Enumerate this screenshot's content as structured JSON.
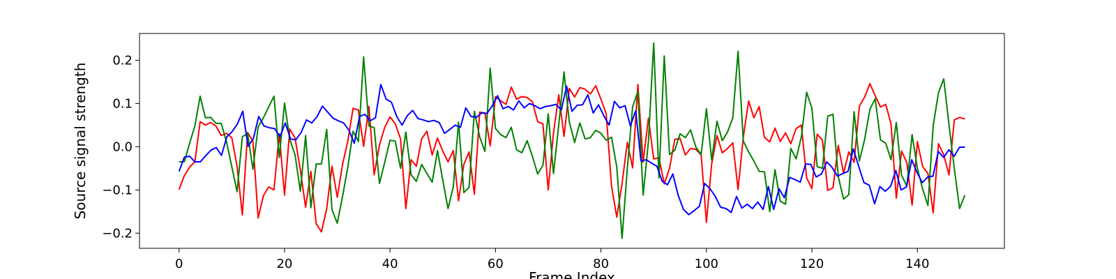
{
  "chart_data": {
    "type": "line",
    "xlabel": "Frame Index",
    "ylabel": "Source signal strength",
    "xlim": [
      -7.5,
      156.5
    ],
    "ylim": [
      -0.235,
      0.262
    ],
    "xticks": [
      0,
      20,
      40,
      60,
      80,
      100,
      120,
      140
    ],
    "yticks": [
      -0.2,
      -0.1,
      0.0,
      0.1,
      0.2
    ],
    "xtick_labels": [
      "0",
      "20",
      "40",
      "60",
      "80",
      "100",
      "120",
      "140"
    ],
    "ytick_labels": [
      "−0.2",
      "−0.1",
      "0.0",
      "0.1",
      "0.2"
    ],
    "grid": false,
    "legend": false,
    "x_start": 0,
    "x_end": 149,
    "series": [
      {
        "color": "#ff0000",
        "values": [
          -0.099,
          -0.067,
          -0.047,
          -0.035,
          0.058,
          0.05,
          0.056,
          0.048,
          0.026,
          0.031,
          0.021,
          -0.045,
          -0.158,
          0.033,
          0.013,
          -0.165,
          -0.113,
          -0.093,
          -0.1,
          0.03,
          -0.112,
          0.041,
          0.02,
          -0.054,
          -0.14,
          -0.057,
          -0.178,
          -0.197,
          -0.143,
          -0.045,
          -0.117,
          -0.041,
          0.013,
          0.089,
          0.085,
          0.001,
          0.093,
          -0.065,
          0.004,
          0.045,
          0.069,
          0.053,
          0.018,
          -0.143,
          -0.03,
          -0.045,
          0.018,
          0.036,
          -0.019,
          0.02,
          -0.01,
          -0.035,
          -0.009,
          -0.125,
          -0.041,
          -0.012,
          -0.11,
          0.08,
          0.078,
          0.002,
          0.116,
          0.106,
          0.098,
          0.138,
          0.11,
          0.116,
          0.114,
          0.104,
          0.058,
          0.053,
          -0.1,
          0.032,
          0.12,
          0.024,
          0.135,
          0.115,
          0.137,
          0.133,
          0.122,
          0.141,
          0.11,
          0.076,
          -0.091,
          -0.163,
          -0.085,
          0.01,
          -0.049,
          0.144,
          -0.036,
          0.066,
          -0.028,
          -0.026,
          -0.086,
          -0.05,
          0.017,
          0.019,
          -0.019,
          -0.004,
          -0.006,
          -0.019,
          -0.175,
          -0.039,
          0.026,
          -0.014,
          -0.004,
          0.009,
          -0.099,
          0.023,
          0.106,
          0.067,
          0.093,
          0.022,
          0.011,
          0.043,
          0.012,
          0.032,
          0.007,
          0.042,
          0.05,
          -0.072,
          -0.097,
          0.029,
          0.015,
          -0.101,
          -0.095,
          0.003,
          -0.061,
          -0.012,
          -0.036,
          0.094,
          0.115,
          0.146,
          0.118,
          0.092,
          0.098,
          0.053,
          -0.119,
          -0.01,
          -0.037,
          -0.135,
          0.012,
          -0.046,
          -0.062,
          -0.153,
          0.007,
          -0.019,
          -0.065,
          0.062,
          0.068,
          0.064
        ]
      },
      {
        "color": "#008000",
        "values": [
          -0.035,
          -0.035,
          0.008,
          0.048,
          0.117,
          0.067,
          0.068,
          0.054,
          0.054,
          0.011,
          -0.046,
          -0.104,
          0.023,
          0.031,
          -0.052,
          0.046,
          0.067,
          0.092,
          0.117,
          -0.025,
          0.101,
          0.017,
          -0.019,
          -0.103,
          0.026,
          -0.141,
          -0.04,
          -0.04,
          0.04,
          -0.146,
          -0.177,
          -0.115,
          -0.047,
          0.036,
          0.012,
          0.208,
          0.048,
          0.044,
          -0.085,
          -0.036,
          0.015,
          0.013,
          -0.05,
          0.034,
          -0.065,
          -0.08,
          -0.041,
          -0.062,
          -0.082,
          -0.009,
          -0.077,
          -0.143,
          -0.093,
          0.057,
          -0.106,
          -0.094,
          0.082,
          0.023,
          -0.011,
          0.182,
          0.042,
          0.028,
          0.021,
          0.045,
          -0.007,
          -0.014,
          0.014,
          -0.022,
          -0.063,
          -0.043,
          0.076,
          -0.062,
          0.051,
          0.173,
          0.057,
          0.01,
          0.055,
          0.018,
          0.021,
          0.038,
          0.031,
          0.015,
          0.022,
          -0.047,
          -0.212,
          -0.05,
          0.092,
          0.128,
          -0.112,
          0.012,
          0.24,
          -0.072,
          0.21,
          -0.018,
          -0.008,
          0.03,
          0.021,
          0.039,
          -0.001,
          -0.018,
          0.088,
          -0.031,
          0.059,
          0.014,
          0.034,
          0.067,
          0.221,
          0.013,
          -0.012,
          -0.033,
          -0.057,
          -0.058,
          -0.15,
          -0.053,
          -0.126,
          -0.133,
          -0.004,
          -0.028,
          0.023,
          0.126,
          0.089,
          -0.046,
          -0.05,
          0.071,
          0.075,
          -0.069,
          -0.121,
          -0.111,
          0.081,
          -0.033,
          0.017,
          0.087,
          0.111,
          0.016,
          0.008,
          -0.03,
          0.056,
          -0.066,
          -0.091,
          0.028,
          -0.05,
          -0.098,
          -0.136,
          0.049,
          0.125,
          0.157,
          0.05,
          -0.05,
          -0.143,
          -0.112
        ]
      },
      {
        "color": "#0000ff",
        "values": [
          -0.057,
          -0.024,
          -0.022,
          -0.035,
          -0.035,
          -0.021,
          -0.008,
          -0.002,
          -0.02,
          0.023,
          0.035,
          0.053,
          0.082,
          0.001,
          0.019,
          0.07,
          0.048,
          0.044,
          0.042,
          0.023,
          0.055,
          0.018,
          0.016,
          0.033,
          0.062,
          0.055,
          0.07,
          0.094,
          0.08,
          0.066,
          0.06,
          0.055,
          0.038,
          0.008,
          0.07,
          0.075,
          0.06,
          0.067,
          0.144,
          0.11,
          0.103,
          0.07,
          0.05,
          0.072,
          0.084,
          0.065,
          0.062,
          0.058,
          0.061,
          0.056,
          0.031,
          0.04,
          0.05,
          0.045,
          0.09,
          0.07,
          0.068,
          0.078,
          0.077,
          0.095,
          0.118,
          0.088,
          0.093,
          0.085,
          0.106,
          0.09,
          0.1,
          0.095,
          0.088,
          0.093,
          0.095,
          0.098,
          0.085,
          0.14,
          0.082,
          0.096,
          0.097,
          0.12,
          0.078,
          0.097,
          0.072,
          0.05,
          0.105,
          0.09,
          0.095,
          0.048,
          0.083,
          -0.033,
          -0.03,
          -0.038,
          -0.045,
          -0.08,
          -0.088,
          -0.063,
          -0.112,
          -0.145,
          -0.157,
          -0.148,
          -0.138,
          -0.085,
          -0.097,
          -0.115,
          -0.14,
          -0.143,
          -0.152,
          -0.115,
          -0.142,
          -0.133,
          -0.143,
          -0.128,
          -0.145,
          -0.092,
          -0.145,
          -0.097,
          -0.118,
          -0.071,
          -0.076,
          -0.082,
          -0.04,
          -0.041,
          -0.07,
          -0.063,
          -0.035,
          -0.048,
          -0.068,
          -0.062,
          -0.057,
          -0.005,
          -0.045,
          -0.083,
          -0.089,
          -0.132,
          -0.092,
          -0.103,
          -0.092,
          -0.055,
          -0.1,
          -0.093,
          -0.03,
          -0.06,
          -0.083,
          -0.07,
          -0.068,
          -0.011,
          -0.025,
          -0.007,
          -0.022,
          -0.001,
          -0.001
        ]
      }
    ]
  }
}
